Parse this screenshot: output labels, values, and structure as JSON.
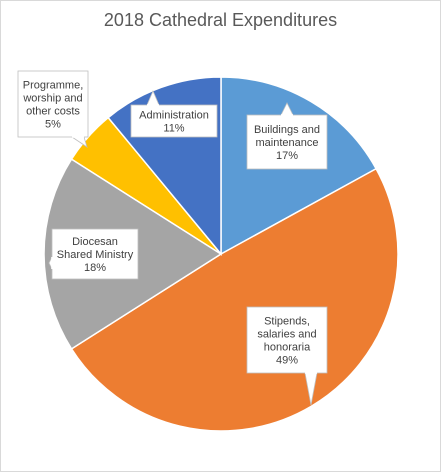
{
  "chart_data": {
    "type": "pie",
    "title": "2018 Cathedral Expenditures",
    "slices": [
      {
        "label": [
          "Buildings and",
          "maintenance"
        ],
        "pct": "17%",
        "value": 17,
        "color": "#5b9bd5"
      },
      {
        "label": [
          "Stipends,",
          "salaries and",
          "honoraria"
        ],
        "pct": "49%",
        "value": 49,
        "color": "#ed7d31"
      },
      {
        "label": [
          "Diocesan",
          "Shared Ministry"
        ],
        "pct": "18%",
        "value": 18,
        "color": "#a5a5a5"
      },
      {
        "label": [
          "Programme,",
          "worship and",
          "other costs"
        ],
        "pct": "5%",
        "value": 5,
        "color": "#ffc000"
      },
      {
        "label": [
          "Administration"
        ],
        "pct": "11%",
        "value": 11,
        "color": "#4472c4"
      }
    ],
    "start_angle_deg": 0,
    "direction": "clockwise",
    "legend": "none",
    "label_style": "callout"
  }
}
